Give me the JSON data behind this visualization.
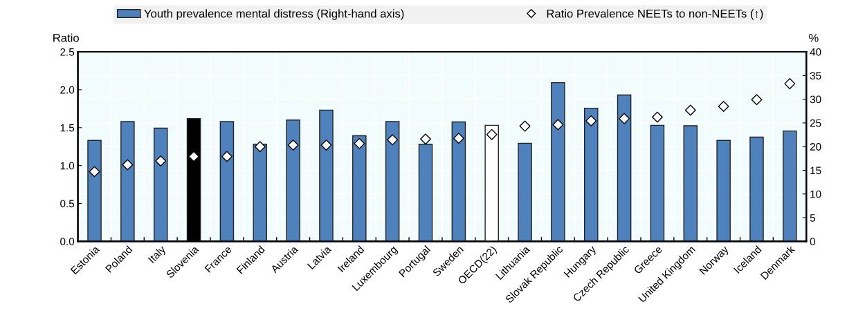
{
  "chart_data": {
    "type": "bar",
    "ylabel": "Ratio",
    "y2label": "%",
    "categories": [
      "Estonia",
      "Poland",
      "Italy",
      "Slovenia",
      "France",
      "Finland",
      "Austria",
      "Latvia",
      "Ireland",
      "Luxembourg",
      "Portugal",
      "Sweden",
      "OECD(22)",
      "Lithuania",
      "Slovak Republic",
      "Hungary",
      "Czech Republic",
      "Greece",
      "United Kingdom",
      "Norway",
      "Iceland",
      "Denmark"
    ],
    "series": [
      {
        "name": "Youth prevalence mental distress (Right-hand axis)",
        "axis": "y2",
        "color": "#4f81bd",
        "colors": [
          "#4f81bd",
          "#4f81bd",
          "#4f81bd",
          "#000000",
          "#4f81bd",
          "#4f81bd",
          "#4f81bd",
          "#4f81bd",
          "#4f81bd",
          "#4f81bd",
          "#4f81bd",
          "#4f81bd",
          "#ffffff",
          "#4f81bd",
          "#4f81bd",
          "#4f81bd",
          "#4f81bd",
          "#4f81bd",
          "#4f81bd",
          "#4f81bd",
          "#4f81bd",
          "#4f81bd"
        ],
        "values": [
          21.3,
          25.3,
          23.9,
          25.9,
          25.3,
          20.5,
          25.6,
          27.7,
          22.3,
          25.3,
          20.5,
          25.2,
          24.5,
          20.7,
          33.5,
          28.1,
          30.9,
          24.5,
          24.4,
          21.3,
          22.0,
          23.3
        ]
      },
      {
        "name": "Ratio Prevalence NEETs to non-NEETs (↑)",
        "type": "scatter",
        "color": "#ffffff",
        "marker": "diamond",
        "values": [
          0.92,
          1.01,
          1.06,
          1.12,
          1.12,
          1.25,
          1.27,
          1.27,
          1.29,
          1.34,
          1.35,
          1.36,
          1.41,
          1.52,
          1.54,
          1.59,
          1.62,
          1.64,
          1.73,
          1.78,
          1.87,
          2.08
        ]
      }
    ],
    "ylim": [
      0,
      2.5
    ],
    "yticks": [
      {
        "value": 0,
        "label": "0.0"
      },
      {
        "value": 0.5,
        "label": "0.5"
      },
      {
        "value": 1,
        "label": "1.0"
      },
      {
        "value": 1.5,
        "label": "1.5"
      },
      {
        "value": 2,
        "label": "2.0"
      },
      {
        "value": 2.5,
        "label": "2.5"
      }
    ],
    "y2lim": [
      0,
      40
    ],
    "y2ticks": [
      0,
      5,
      10,
      15,
      20,
      25,
      30,
      35,
      40
    ],
    "grid": true,
    "legend": "top"
  }
}
